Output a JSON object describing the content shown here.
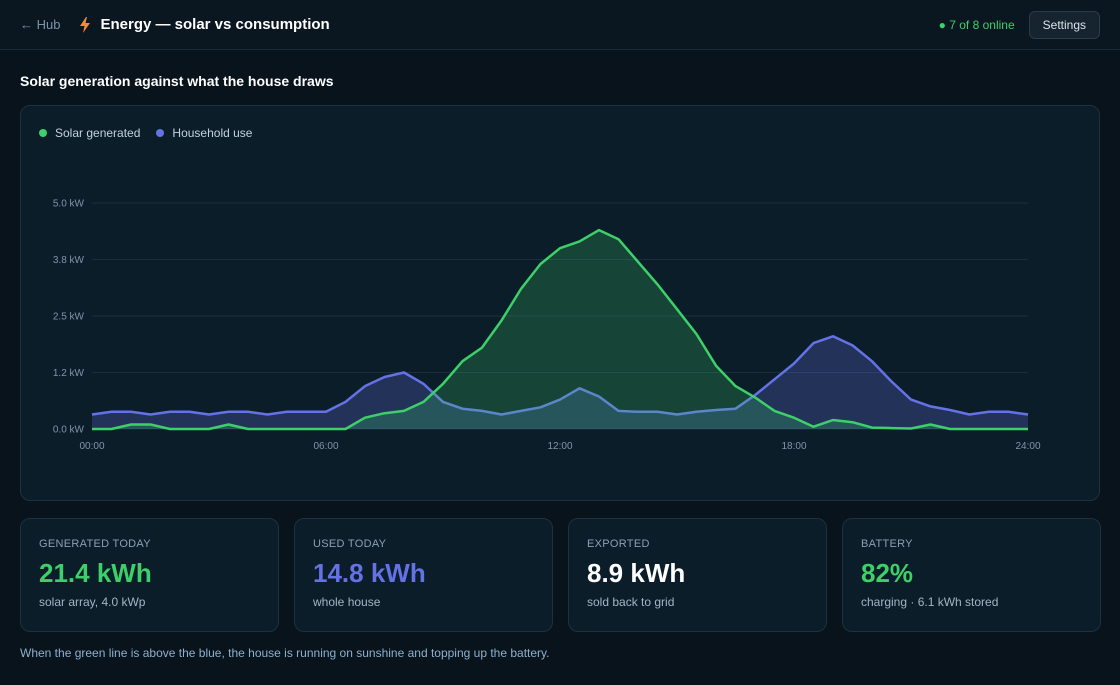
{
  "header": {
    "back_label": "← Hub",
    "title": "Energy — solar vs consumption",
    "online_status": "● 7 of 8 online",
    "settings_label": "Settings",
    "icon": "lightning-bolt-icon"
  },
  "section_title": "Solar generation against what the house draws",
  "colors": {
    "solar": "#3dd068",
    "household": "#6572e6",
    "accent_text": "#ffffff"
  },
  "chart_data": {
    "type": "area",
    "x_ticks": [
      "00:00",
      "06:00",
      "12:00",
      "18:00",
      "24:00"
    ],
    "y_ticks": [
      "0.0 kW",
      "1.2 kW",
      "2.5 kW",
      "3.8 kW",
      "5.0 kW"
    ],
    "xlim": [
      0,
      24
    ],
    "ylim": [
      0,
      5
    ],
    "grid": true,
    "legend_position": "top-left",
    "series": [
      {
        "name": "Solar generated",
        "color": "#3dd068",
        "x": [
          0,
          0.5,
          1,
          1.5,
          2,
          2.5,
          3,
          3.5,
          4,
          4.5,
          5,
          5.5,
          6,
          6.5,
          7,
          7.5,
          8,
          8.5,
          9,
          9.5,
          10,
          10.5,
          11,
          11.5,
          12,
          12.5,
          13,
          13.5,
          14,
          14.5,
          15,
          15.5,
          16,
          16.5,
          17,
          17.5,
          18,
          18.5,
          19,
          19.5,
          20,
          20.5,
          21,
          21.5,
          22,
          22.5,
          23,
          23.5,
          24
        ],
        "values": [
          0,
          0,
          0.1,
          0.1,
          0,
          0,
          0,
          0.1,
          0,
          0,
          0,
          0,
          0,
          0,
          0.25,
          0.35,
          0.4,
          0.6,
          1.0,
          1.5,
          1.8,
          2.4,
          3.1,
          3.65,
          4.0,
          4.15,
          4.4,
          4.2,
          3.7,
          3.2,
          2.65,
          2.1,
          1.4,
          0.95,
          0.7,
          0.4,
          0.25,
          0.05,
          0.2,
          0.15,
          0.03,
          0.02,
          0.01,
          0.1,
          0,
          0,
          0,
          0,
          0
        ]
      },
      {
        "name": "Household use",
        "color": "#6572e6",
        "x": [
          0,
          0.5,
          1,
          1.5,
          2,
          2.5,
          3,
          3.5,
          4,
          4.5,
          5,
          5.5,
          6,
          6.5,
          7,
          7.5,
          8,
          8.5,
          9,
          9.5,
          10,
          10.5,
          11,
          11.5,
          12,
          12.5,
          13,
          13.5,
          14,
          14.5,
          15,
          15.5,
          16,
          16.5,
          17,
          17.5,
          18,
          18.5,
          19,
          19.5,
          20,
          20.5,
          21,
          21.5,
          22,
          22.5,
          23,
          23.5,
          24
        ],
        "values": [
          0.32,
          0.38,
          0.38,
          0.32,
          0.38,
          0.38,
          0.32,
          0.38,
          0.38,
          0.32,
          0.38,
          0.38,
          0.38,
          0.6,
          0.95,
          1.15,
          1.25,
          1.0,
          0.6,
          0.45,
          0.4,
          0.32,
          0.4,
          0.48,
          0.65,
          0.9,
          0.72,
          0.4,
          0.38,
          0.38,
          0.32,
          0.38,
          0.42,
          0.45,
          0.75,
          1.1,
          1.45,
          1.9,
          2.05,
          1.85,
          1.5,
          1.05,
          0.65,
          0.5,
          0.42,
          0.32,
          0.38,
          0.38,
          0.32
        ]
      }
    ]
  },
  "stats": [
    {
      "label": "GENERATED TODAY",
      "value": "21.4 kWh",
      "sub": "solar array, 4.0 kWp",
      "color": "#3dd068"
    },
    {
      "label": "USED TODAY",
      "value": "14.8 kWh",
      "sub": "whole house",
      "color": "#6572e6"
    },
    {
      "label": "EXPORTED",
      "value": "8.9 kWh",
      "sub": "sold back to grid",
      "color": "#ffffff"
    },
    {
      "label": "BATTERY",
      "value": "82%",
      "sub": "charging · 6.1 kWh stored",
      "color": "#3dd068"
    }
  ],
  "footnote": "When the green line is above the blue, the house is running on sunshine and topping up the battery."
}
